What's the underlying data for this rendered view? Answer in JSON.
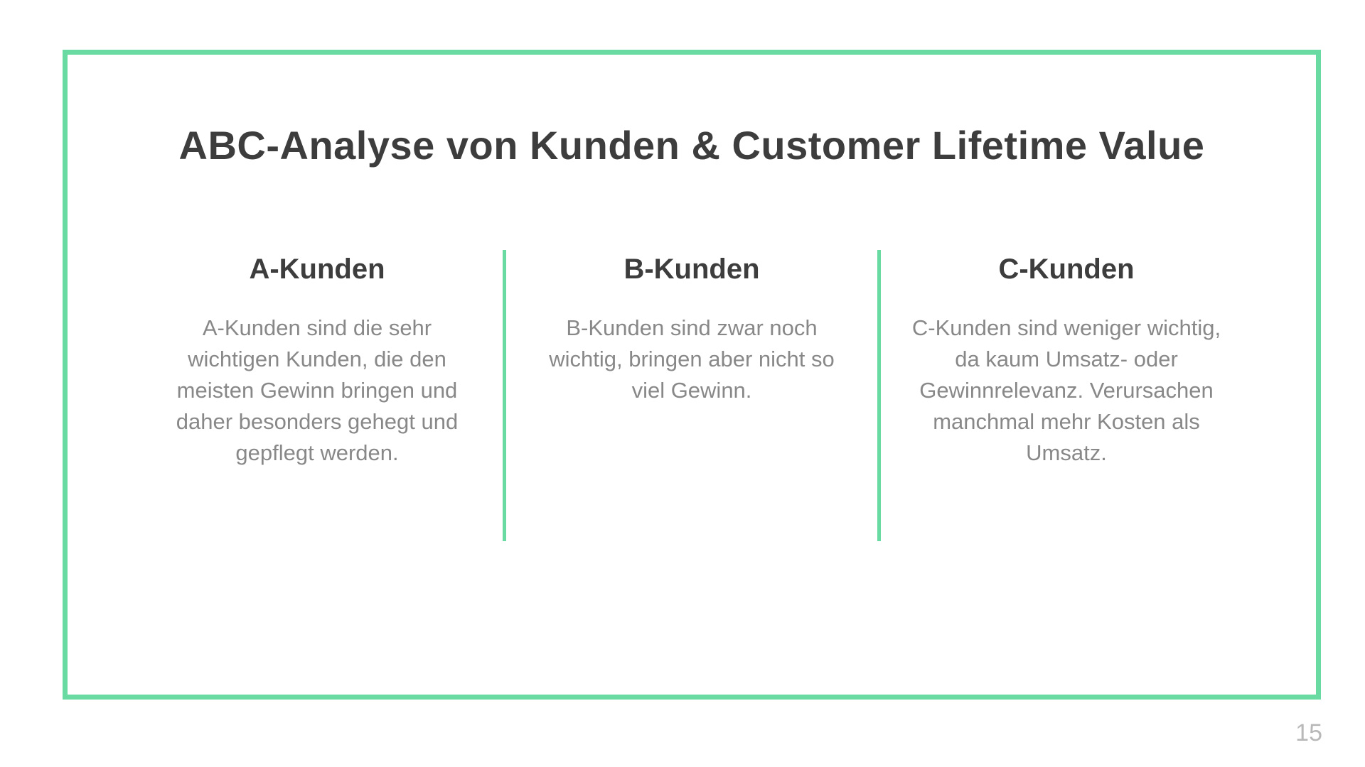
{
  "slide": {
    "title": "ABC-Analyse von Kunden & Customer Lifetime Value",
    "border_color": "#69dba2",
    "divider_color": "#69dba2",
    "background_color": "#ffffff",
    "title_color": "#3d3d3d",
    "title_fontsize": 56,
    "column_title_color": "#3d3d3d",
    "column_title_fontsize": 40,
    "column_text_color": "#888888",
    "column_text_fontsize": 31,
    "columns": [
      {
        "title": "A-Kunden",
        "text": "A-Kunden sind die sehr wichtigen Kunden, die den meisten Gewinn bringen und daher besonders gehegt und gepflegt werden."
      },
      {
        "title": "B-Kunden",
        "text": "B-Kunden sind zwar noch wichtig, bringen aber nicht so viel Gewinn."
      },
      {
        "title": "C-Kunden",
        "text": "C-Kunden sind weniger wichtig, da kaum Umsatz- oder Gewinnrelevanz. Verursachen manchmal mehr Kosten als Umsatz."
      }
    ],
    "page_number": "15",
    "page_number_color": "#b8b8b8"
  }
}
